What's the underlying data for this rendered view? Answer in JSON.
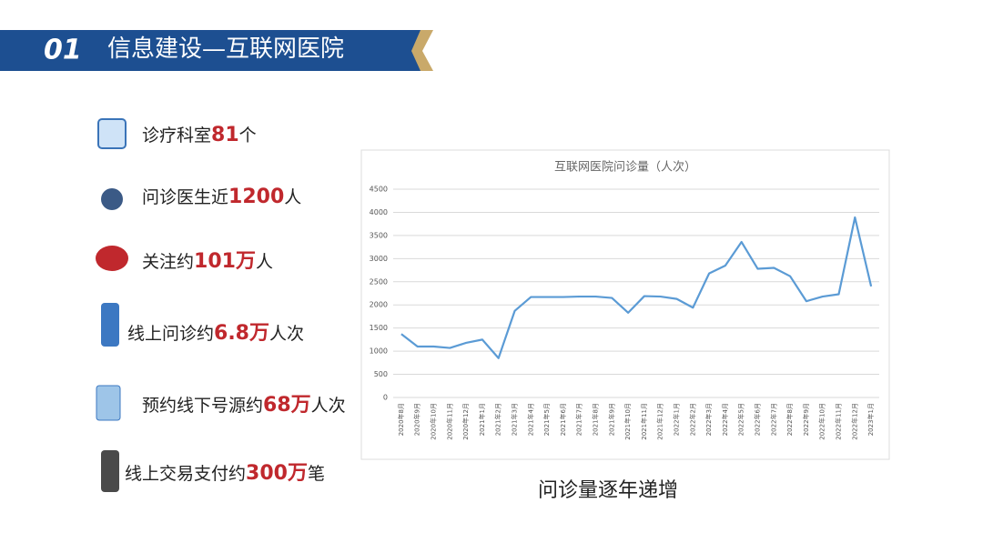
{
  "header": {
    "number": "01",
    "title": "信息建设—互联网医院"
  },
  "stats": [
    {
      "prefix": "诊疗科室",
      "figure": "81",
      "suffix": "个"
    },
    {
      "prefix": "问诊医生近",
      "figure": "1200",
      "suffix": "人"
    },
    {
      "prefix": "关注约",
      "figure": "101万",
      "suffix": "人"
    },
    {
      "prefix": "线上问诊约",
      "figure": "6.8万",
      "suffix": "人次"
    },
    {
      "prefix": "预约线下号源约",
      "figure": "68万",
      "suffix": "人次"
    },
    {
      "prefix": "线上交易支付约",
      "figure": "300万",
      "suffix": "笔"
    }
  ],
  "caption": "问诊量逐年递增",
  "chart_data": {
    "type": "line",
    "title": "互联网医院问诊量（人次）",
    "categories": [
      "2020年8月",
      "2020年9月",
      "2020年10月",
      "2020年11月",
      "2020年12月",
      "2021年1月",
      "2021年2月",
      "2021年3月",
      "2021年4月",
      "2021年5月",
      "2021年6月",
      "2021年7月",
      "2021年8月",
      "2021年9月",
      "2021年10月",
      "2021年11月",
      "2021年12月",
      "2022年1月",
      "2022年2月",
      "2022年3月",
      "2022年4月",
      "2022年5月",
      "2022年6月",
      "2022年7月",
      "2022年8月",
      "2022年9月",
      "2022年10月",
      "2022年11月",
      "2022年12月",
      "2023年1月"
    ],
    "values": [
      1370,
      1100,
      1100,
      1070,
      1180,
      1250,
      850,
      1870,
      2170,
      2170,
      2170,
      2180,
      2180,
      2150,
      1830,
      2190,
      2180,
      2130,
      1940,
      2680,
      2850,
      3360,
      2780,
      2800,
      2620,
      2080,
      2180,
      2230,
      3890,
      2400
    ],
    "color": "#5b9bd5",
    "ylim": [
      0,
      4500
    ],
    "yticks": [
      0,
      500,
      1000,
      1500,
      2000,
      2500,
      3000,
      3500,
      4000,
      4500
    ],
    "grid": true
  }
}
